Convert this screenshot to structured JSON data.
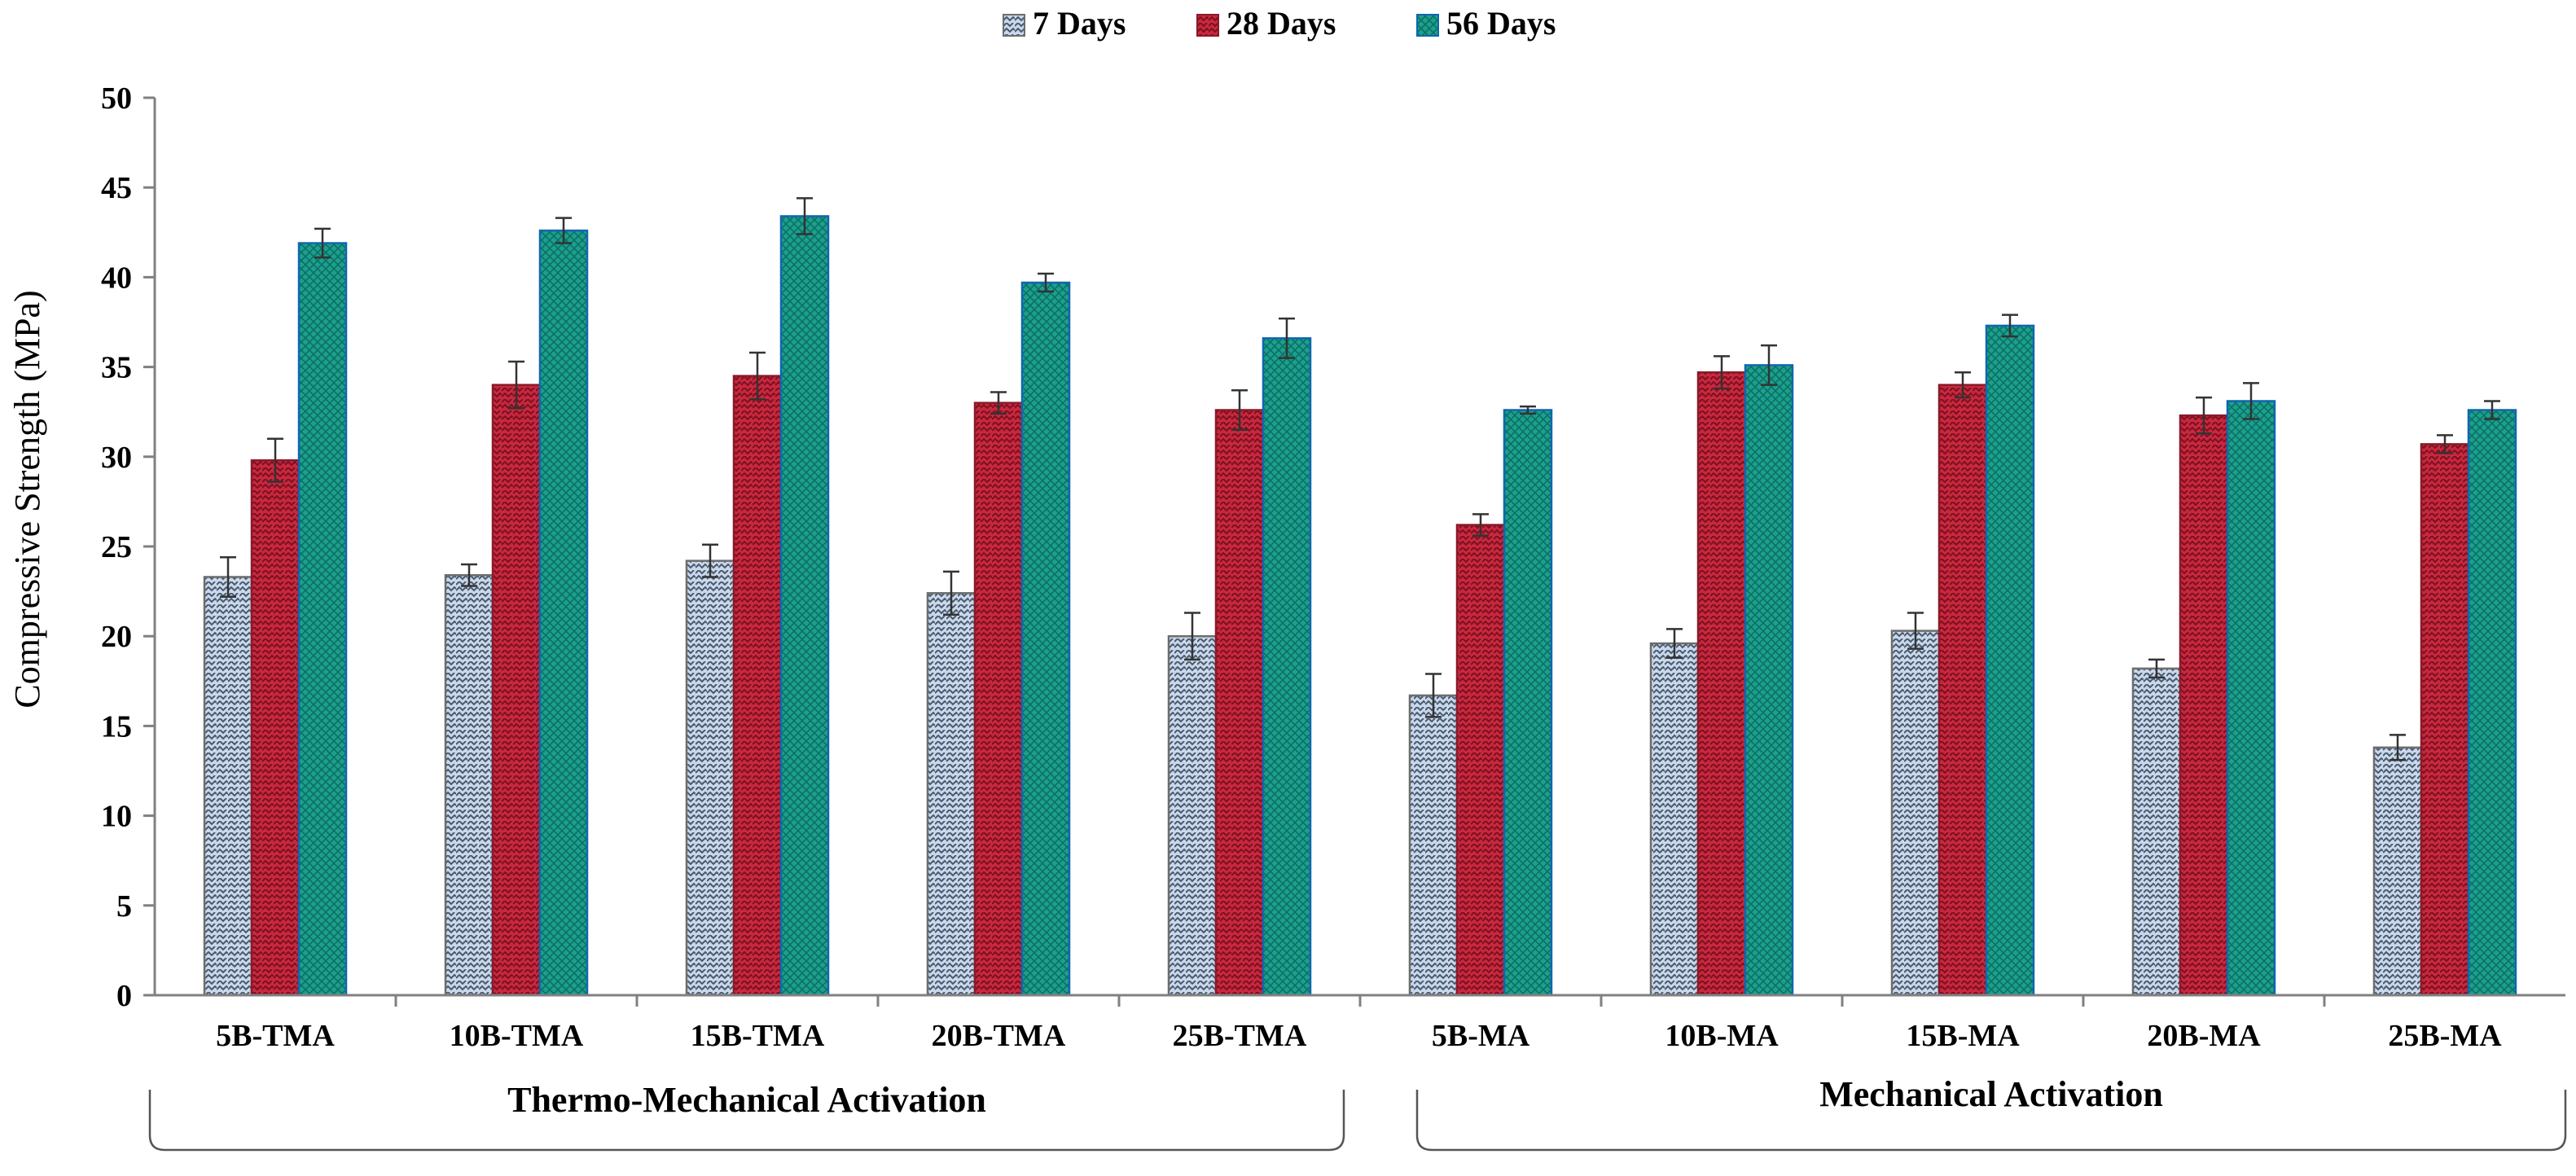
{
  "chart_data": {
    "type": "bar",
    "ylabel": "Compressive Strength (MPa)",
    "ylim": [
      0,
      50
    ],
    "yticks": [
      0,
      5,
      10,
      15,
      20,
      25,
      30,
      35,
      40,
      45,
      50
    ],
    "grid": false,
    "legend_position": "top-center",
    "categories": [
      "5B-TMA",
      "10B-TMA",
      "15B-TMA",
      "20B-TMA",
      "25B-TMA",
      "5B-MA",
      "10B-MA",
      "15B-MA",
      "20B-MA",
      "25B-MA"
    ],
    "series": [
      {
        "name": "7 Days",
        "color": "#c5d6ea",
        "pattern": "zigzag-gray",
        "values": [
          23.3,
          23.4,
          24.2,
          22.4,
          20.0,
          16.7,
          19.6,
          20.3,
          18.2,
          13.8
        ],
        "errors": [
          1.1,
          0.6,
          0.9,
          1.2,
          1.3,
          1.2,
          0.8,
          1.0,
          0.5,
          0.7
        ]
      },
      {
        "name": "28 Days",
        "color": "#c0283c",
        "pattern": "zigzag-red",
        "values": [
          29.8,
          34.0,
          34.5,
          33.0,
          32.6,
          26.2,
          34.7,
          34.0,
          32.3,
          30.7
        ],
        "errors": [
          1.2,
          1.3,
          1.3,
          0.6,
          1.1,
          0.6,
          0.9,
          0.7,
          1.0,
          0.5
        ]
      },
      {
        "name": "56 Days",
        "color": "#1a9a8a",
        "pattern": "mesh-teal",
        "values": [
          41.9,
          42.6,
          43.4,
          39.7,
          36.6,
          32.6,
          35.1,
          37.3,
          33.1,
          32.6
        ],
        "errors": [
          0.8,
          0.7,
          1.0,
          0.5,
          1.1,
          0.2,
          1.1,
          0.6,
          1.0,
          0.5
        ]
      }
    ],
    "groups": [
      {
        "label": "Thermo-Mechanical Activation",
        "categories": [
          "5B-TMA",
          "10B-TMA",
          "15B-TMA",
          "20B-TMA",
          "25B-TMA"
        ]
      },
      {
        "label": "Mechanical Activation",
        "categories": [
          "5B-MA",
          "10B-MA",
          "15B-MA",
          "20B-MA",
          "25B-MA"
        ]
      }
    ]
  }
}
